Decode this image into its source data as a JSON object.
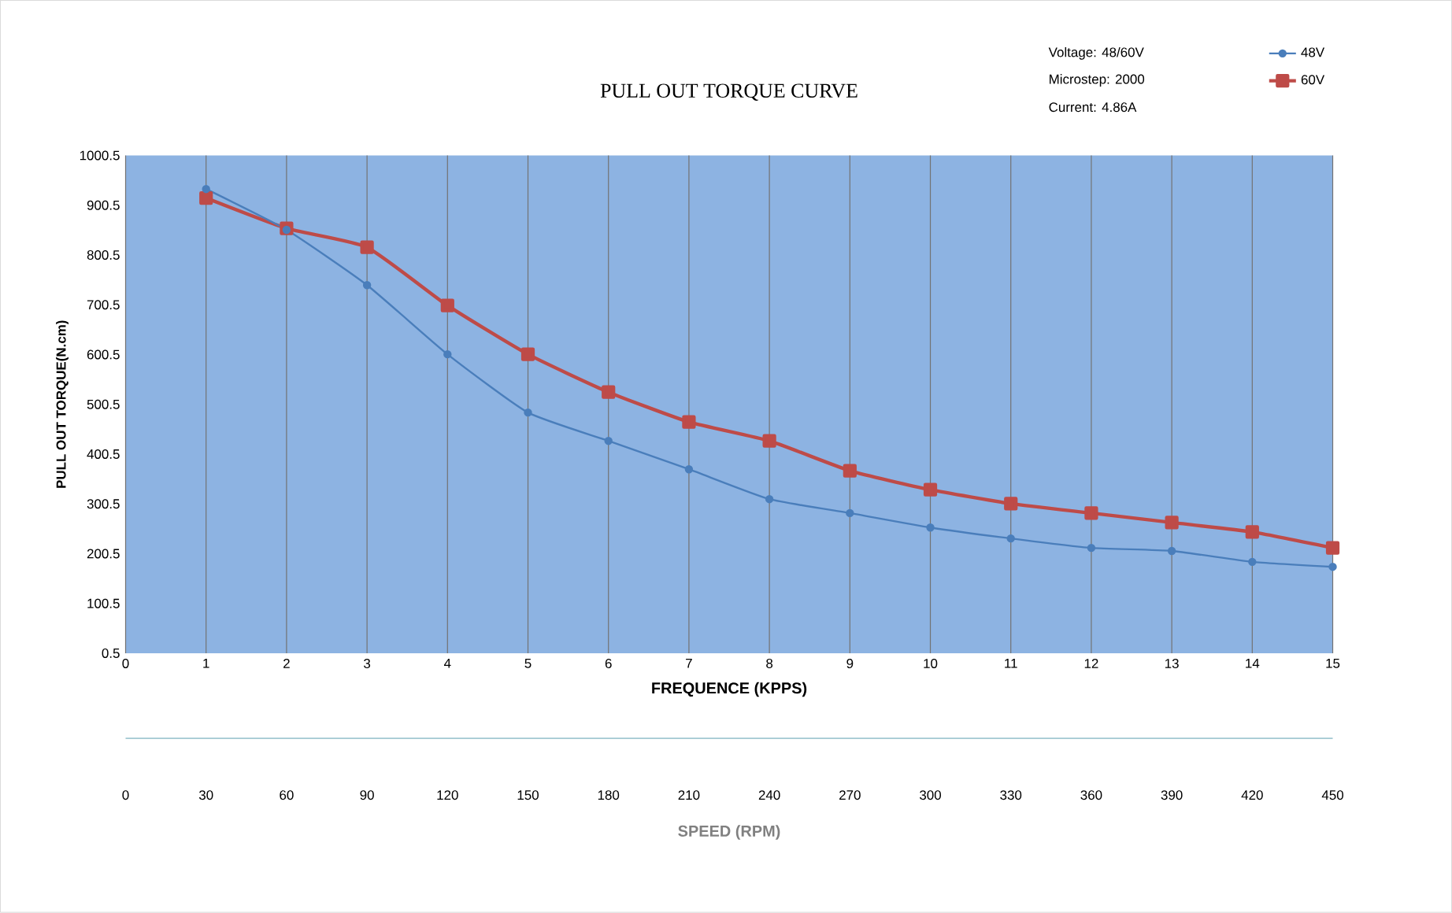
{
  "chart_data": {
    "type": "line",
    "title": "PULL OUT TORQUE CURVE",
    "xlabel": "FREQUENCE (KPPS)",
    "ylabel": "PULL OUT TORQUE(N.cm)",
    "annotations": [
      "Voltage: 48/60V",
      "Microstep: 2000",
      "Current: 4.86A",
      "0",
      "30",
      "60",
      "90",
      "120",
      "150",
      "180",
      "210",
      "240",
      "270",
      "300",
      "330",
      "360",
      "390",
      "420",
      "450",
      "SPEED (RPM)"
    ],
    "x": [
      1,
      2,
      3,
      4,
      5,
      6,
      7,
      8,
      9,
      10,
      11,
      12,
      13,
      14,
      15
    ],
    "series": [
      {
        "name": "48V",
        "color": "#4a7ebb",
        "marker": "circle",
        "values": [
          933,
          851,
          740,
          601,
          484,
          427,
          370,
          310,
          282,
          253,
          231,
          212,
          206,
          184,
          174
        ]
      },
      {
        "name": "60V",
        "color": "#be4b48",
        "marker": "square",
        "values": [
          915,
          854,
          816,
          699,
          601,
          525,
          465,
          427,
          367,
          329,
          301,
          282,
          263,
          244,
          212
        ]
      }
    ],
    "xlim": [
      0,
      15
    ],
    "xticks": [
      0,
      1,
      2,
      3,
      4,
      5,
      6,
      7,
      8,
      9,
      10,
      11,
      12,
      13,
      14,
      15
    ],
    "ylim": [
      0.5,
      1000.5
    ],
    "yticks": [
      0.5,
      100.5,
      200.5,
      300.5,
      400.5,
      500.5,
      600.5,
      700.5,
      800.5,
      900.5,
      1000.5
    ],
    "grid": "x",
    "legend": "top right",
    "line_style": "solid"
  }
}
